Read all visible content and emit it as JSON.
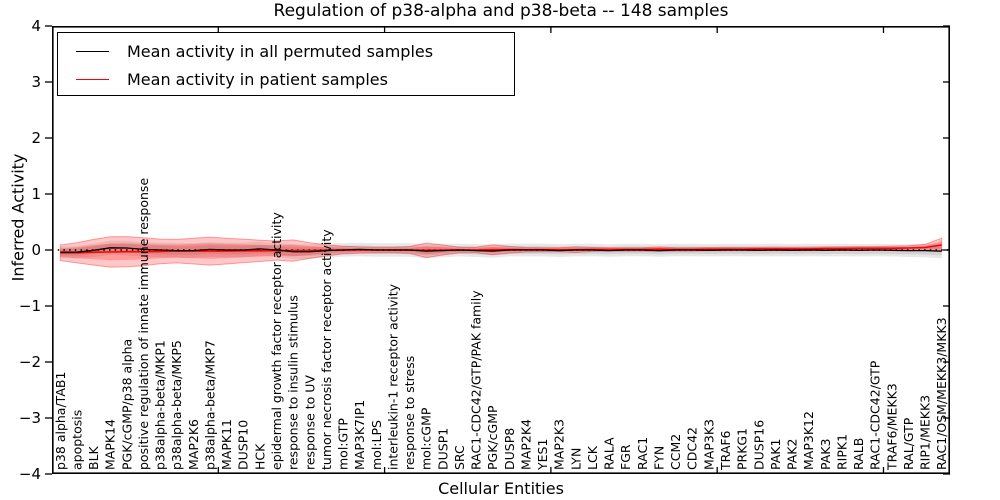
{
  "title": "Regulation of p38-alpha and p38-beta -- 148 samples",
  "legend": {
    "items": [
      {
        "name": "permuted",
        "label": "Mean activity in all permuted samples",
        "color": "#000000"
      },
      {
        "name": "patient",
        "label": "Mean activity in patient samples",
        "color": "#ff0000"
      }
    ]
  },
  "axes": {
    "ylabel": "Inferred Activity",
    "xlabel": "Cellular Entities",
    "ylim": [
      -4,
      4
    ],
    "yticks": [
      {
        "v": 4,
        "label": "4"
      },
      {
        "v": 3,
        "label": "3"
      },
      {
        "v": 2,
        "label": "2"
      },
      {
        "v": 1,
        "label": "1"
      },
      {
        "v": 0,
        "label": "0"
      },
      {
        "v": -1,
        "label": "−1"
      },
      {
        "v": -2,
        "label": "−2"
      },
      {
        "v": -3,
        "label": "−3"
      },
      {
        "v": -4,
        "label": "−4"
      }
    ],
    "xticks_major": [
      10,
      20,
      30,
      40,
      50
    ]
  },
  "colors": {
    "patient_line": "#ff0000",
    "permuted_line": "#000000",
    "patient_band": "rgba(255,0,0,0.22)",
    "patient_band_edge": "rgba(255,0,0,0.35)",
    "permuted_band": "rgba(0,0,0,0.09)",
    "zero_line": "#000000",
    "axis": "#000000"
  },
  "chart_data": {
    "type": "line",
    "title": "Regulation of p38-alpha and p38-beta -- 148 samples",
    "xlabel": "Cellular Entities",
    "ylabel": "Inferred Activity",
    "ylim": [
      -4,
      4
    ],
    "grid": false,
    "legend_position": "upper left",
    "categories": [
      "p38 alpha/TAB1",
      "apoptosis",
      "BLK",
      "MAPK14",
      "PGK/cGMP/p38 alpha",
      "positive regulation of innate immune response",
      "p38alpha-beta/MKP1",
      "p38alpha-beta/MKP5",
      "MAP2K6",
      "p38alpha-beta/MKP7",
      "MAPK11",
      "DUSP10",
      "HCK",
      "epidermal growth factor receptor activity",
      "response to insulin stimulus",
      "response to UV",
      "tumor necrosis factor receptor activity",
      "mol:GTP",
      "MAP3K7IP1",
      "mol:LPS",
      "interleukin-1 receptor activity",
      "response to stress",
      "mol:cGMP",
      "DUSP1",
      "SRC",
      "RAC1-CDC42/GTP/PAK family",
      "PGK/cGMP",
      "DUSP8",
      "MAP2K4",
      "YES1",
      "MAP2K3",
      "LYN",
      "LCK",
      "RALA",
      "FGR",
      "RAC1",
      "FYN",
      "CCM2",
      "CDC42",
      "MAP3K3",
      "TRAF6",
      "PRKG1",
      "DUSP16",
      "PAK1",
      "PAK2",
      "MAP3K12",
      "PAK3",
      "RIPK1",
      "RALB",
      "RAC1-CDC42/GTP",
      "TRAF6/MEKK3",
      "RAL/GTP",
      "RIP1/MEKK3",
      "RAC1/OSM/MEKK3/MKK3"
    ],
    "series": [
      {
        "name": "Mean activity in all permuted samples",
        "color": "#000000",
        "values": [
          -0.04,
          -0.04,
          -0.005,
          0.04,
          0.035,
          0.01,
          0.0,
          -0.01,
          -0.01,
          0.01,
          0.0,
          0.0,
          0.02,
          0.0,
          -0.03,
          -0.03,
          -0.01,
          0.0,
          0.01,
          0.0,
          0.0,
          0.0,
          -0.02,
          -0.01,
          0.0,
          -0.01,
          -0.02,
          0.0,
          0.0,
          0.0,
          -0.01,
          0.0,
          0.0,
          -0.01,
          0.0,
          0.0,
          -0.01,
          0.0,
          0.0,
          -0.005,
          0.0,
          0.0,
          -0.005,
          0.0,
          -0.005,
          0.0,
          -0.005,
          0.0,
          -0.005,
          0.0,
          -0.005,
          -0.01,
          -0.01,
          -0.02
        ]
      },
      {
        "name": "Mean activity in patient samples",
        "color": "#ff0000",
        "values": [
          -0.05,
          -0.05,
          -0.04,
          -0.035,
          -0.03,
          -0.03,
          -0.025,
          -0.02,
          -0.02,
          -0.02,
          -0.02,
          -0.015,
          -0.015,
          -0.01,
          -0.01,
          -0.01,
          -0.005,
          0.0,
          0.0,
          0.0,
          0.0,
          0.0,
          -0.005,
          0.0,
          0.0,
          0.0,
          0.005,
          0.005,
          0.005,
          0.005,
          0.005,
          0.005,
          0.01,
          0.01,
          0.01,
          0.01,
          0.015,
          0.01,
          0.01,
          0.015,
          0.015,
          0.015,
          0.02,
          0.02,
          0.02,
          0.02,
          0.025,
          0.025,
          0.03,
          0.03,
          0.03,
          0.035,
          0.045,
          0.09
        ]
      }
    ],
    "bands": [
      {
        "name": "permuted-std-band",
        "center_series": 0,
        "color": "rgba(0,0,0,0.09)",
        "edge": "none",
        "inner_factor": 0.6,
        "half_widths": [
          0.1,
          0.11,
          0.12,
          0.125,
          0.13,
          0.13,
          0.13,
          0.13,
          0.13,
          0.13,
          0.13,
          0.13,
          0.125,
          0.125,
          0.13,
          0.13,
          0.125,
          0.12,
          0.12,
          0.12,
          0.12,
          0.12,
          0.125,
          0.12,
          0.115,
          0.115,
          0.12,
          0.115,
          0.115,
          0.115,
          0.115,
          0.115,
          0.11,
          0.11,
          0.11,
          0.11,
          0.11,
          0.11,
          0.11,
          0.11,
          0.11,
          0.11,
          0.11,
          0.11,
          0.11,
          0.11,
          0.11,
          0.11,
          0.11,
          0.11,
          0.11,
          0.115,
          0.12,
          0.13
        ]
      },
      {
        "name": "patient-std-band",
        "center_series": 1,
        "color": "rgba(255,0,0,0.22)",
        "edge": "rgba(255,0,0,0.35)",
        "inner_factor": 0.55,
        "half_widths": [
          0.14,
          0.18,
          0.23,
          0.27,
          0.27,
          0.25,
          0.22,
          0.21,
          0.23,
          0.25,
          0.23,
          0.21,
          0.19,
          0.17,
          0.19,
          0.14,
          0.1,
          0.07,
          0.055,
          0.05,
          0.05,
          0.06,
          0.13,
          0.09,
          0.05,
          0.05,
          0.09,
          0.06,
          0.04,
          0.035,
          0.035,
          0.05,
          0.035,
          0.03,
          0.03,
          0.03,
          0.04,
          0.03,
          0.03,
          0.03,
          0.03,
          0.03,
          0.03,
          0.03,
          0.03,
          0.03,
          0.03,
          0.03,
          0.03,
          0.03,
          0.04,
          0.04,
          0.055,
          0.12
        ]
      }
    ],
    "zero_line": 0
  }
}
